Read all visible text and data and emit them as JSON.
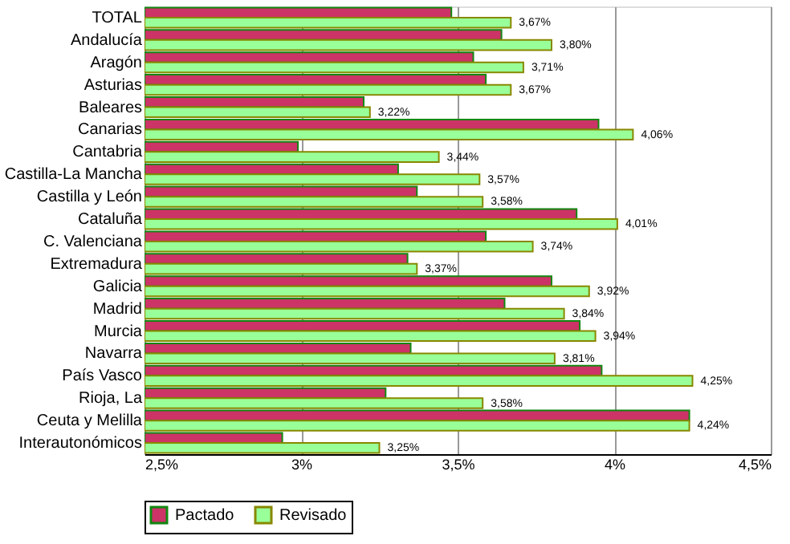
{
  "chart_data": {
    "type": "bar",
    "orientation": "horizontal",
    "categories": [
      "TOTAL",
      "Andalucía",
      "Aragón",
      "Asturias",
      "Baleares",
      "Canarias",
      "Cantabria",
      "Castilla-La Mancha",
      "Castilla y León",
      "Cataluña",
      "C. Valenciana",
      "Extremadura",
      "Galicia",
      "Madrid",
      "Murcia",
      "Navarra",
      "País Vasco",
      "Rioja, La",
      "Ceuta y Melilla",
      "Interautonómicos"
    ],
    "series": [
      {
        "name": "Pactado",
        "color": "#cc3366",
        "values": [
          3.48,
          3.64,
          3.55,
          3.59,
          3.2,
          3.95,
          2.99,
          3.31,
          3.37,
          3.88,
          3.59,
          3.34,
          3.8,
          3.65,
          3.89,
          3.35,
          3.96,
          3.27,
          4.24,
          2.94
        ]
      },
      {
        "name": "Revisado",
        "color": "#99ff99",
        "values": [
          3.67,
          3.8,
          3.71,
          3.67,
          3.22,
          4.06,
          3.44,
          3.57,
          3.58,
          4.01,
          3.74,
          3.37,
          3.92,
          3.84,
          3.94,
          3.81,
          4.25,
          3.58,
          4.24,
          3.25
        ],
        "value_labels": [
          "3,67%",
          "3,80%",
          "3,71%",
          "3,67%",
          "3,22%",
          "4,06%",
          "3,44%",
          "3,57%",
          "3,58%",
          "4,01%",
          "3,74%",
          "3,37%",
          "3,92%",
          "3,84%",
          "3,94%",
          "3,81%",
          "4,25%",
          "3,58%",
          "4,24%",
          "3,25%"
        ]
      }
    ],
    "xlim": [
      2.5,
      4.5
    ],
    "xticks": [
      {
        "value": 2.5,
        "label": "2,5%"
      },
      {
        "value": 3,
        "label": "3%"
      },
      {
        "value": 3.5,
        "label": "3,5%"
      },
      {
        "value": 4,
        "label": "4%"
      },
      {
        "value": 4.5,
        "label": "4,5%"
      }
    ],
    "grid": "x",
    "legend": "bottom"
  }
}
